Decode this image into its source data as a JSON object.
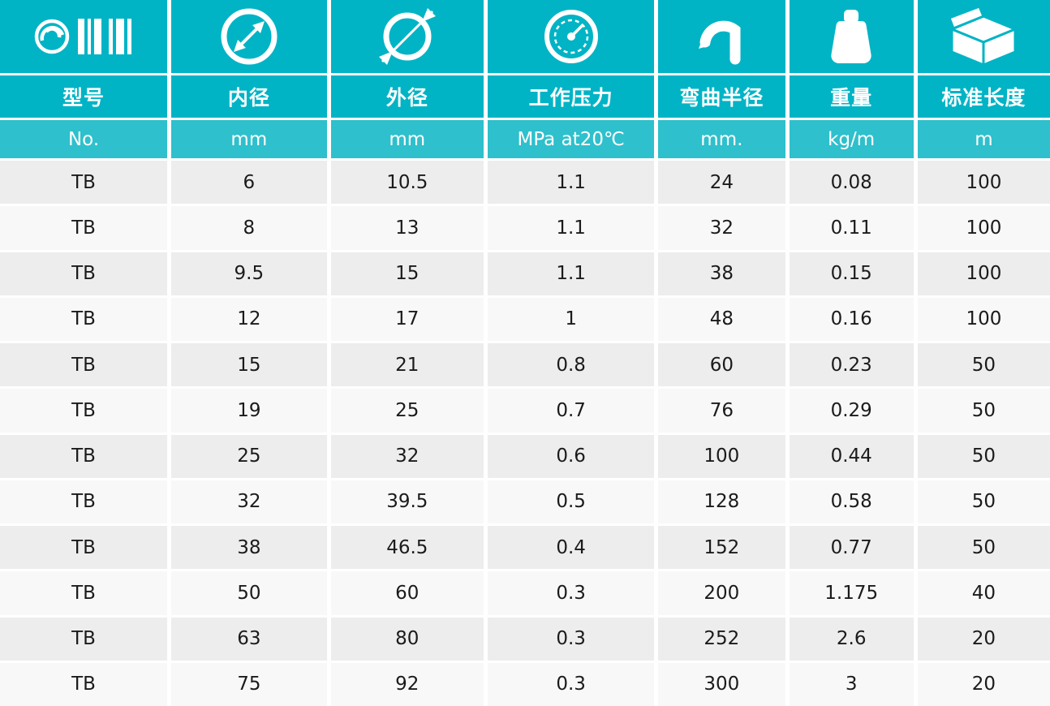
{
  "theme": {
    "header_teal": "#00b4c5",
    "unit_row_teal": "#2ec0cc",
    "row_odd": "#ededee",
    "row_even": "#f8f8f8",
    "header_text": "#ffffff",
    "body_text": "#1b1b1b"
  },
  "chart_data": {
    "type": "table",
    "columns": [
      {
        "icon": "logo-barcode-icon",
        "label": "型号",
        "unit": "No."
      },
      {
        "icon": "inner-diameter-icon",
        "label": "内径",
        "unit": "mm"
      },
      {
        "icon": "outer-diameter-icon",
        "label": "外径",
        "unit": "mm"
      },
      {
        "icon": "pressure-gauge-icon",
        "label": "工作压力",
        "unit": "MPa at20℃"
      },
      {
        "icon": "bend-radius-icon",
        "label": "弯曲半径",
        "unit": "mm."
      },
      {
        "icon": "weight-icon",
        "label": "重量",
        "unit": "kg/m"
      },
      {
        "icon": "package-icon",
        "label": "标准长度",
        "unit": "m"
      }
    ],
    "rows": [
      [
        "TB",
        "6",
        "10.5",
        "1.1",
        "24",
        "0.08",
        "100"
      ],
      [
        "TB",
        "8",
        "13",
        "1.1",
        "32",
        "0.11",
        "100"
      ],
      [
        "TB",
        "9.5",
        "15",
        "1.1",
        "38",
        "0.15",
        "100"
      ],
      [
        "TB",
        "12",
        "17",
        "1",
        "48",
        "0.16",
        "100"
      ],
      [
        "TB",
        "15",
        "21",
        "0.8",
        "60",
        "0.23",
        "50"
      ],
      [
        "TB",
        "19",
        "25",
        "0.7",
        "76",
        "0.29",
        "50"
      ],
      [
        "TB",
        "25",
        "32",
        "0.6",
        "100",
        "0.44",
        "50"
      ],
      [
        "TB",
        "32",
        "39.5",
        "0.5",
        "128",
        "0.58",
        "50"
      ],
      [
        "TB",
        "38",
        "46.5",
        "0.4",
        "152",
        "0.77",
        "50"
      ],
      [
        "TB",
        "50",
        "60",
        "0.3",
        "200",
        "1.175",
        "40"
      ],
      [
        "TB",
        "63",
        "80",
        "0.3",
        "252",
        "2.6",
        "20"
      ],
      [
        "TB",
        "75",
        "92",
        "0.3",
        "300",
        "3",
        "20"
      ]
    ]
  }
}
